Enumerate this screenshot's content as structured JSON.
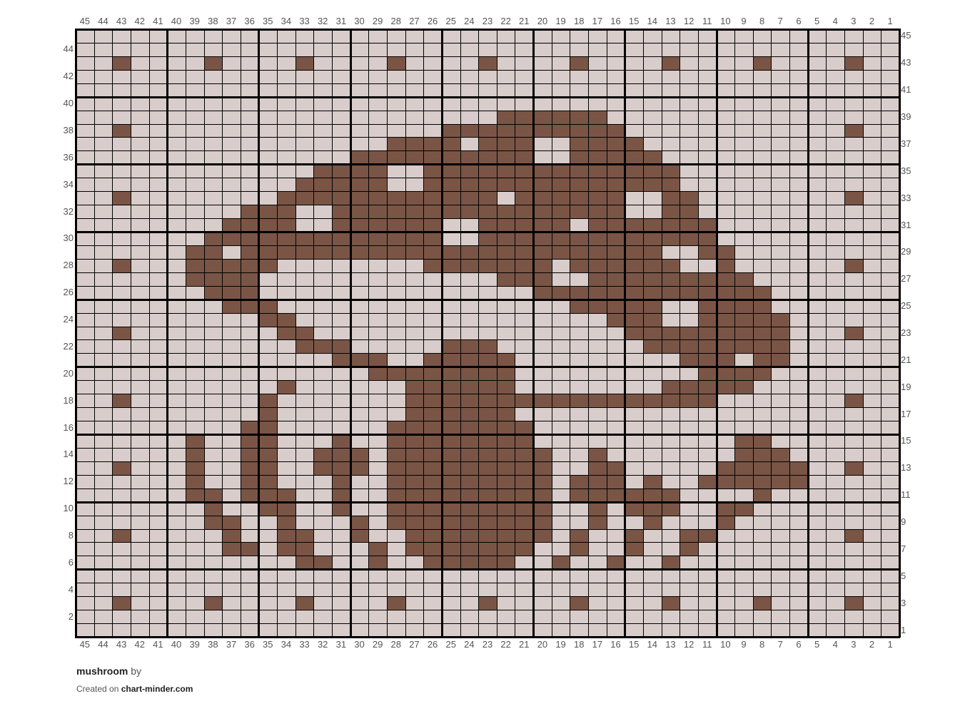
{
  "chart_data": {
    "type": "stitch-grid",
    "columns": 45,
    "rows": 45,
    "column_labels_order": "right-to-left",
    "row_labels_order": "bottom-to-top",
    "left_row_labels": "even",
    "right_row_labels": "odd",
    "colors": {
      "background": "#d8cdca",
      "stitch": "#7a5546",
      "grid": "#000000"
    },
    "dark_stitches": {
      "43": [
        43,
        38,
        33,
        28,
        23,
        18,
        13,
        8,
        3
      ],
      "39": [
        22,
        21,
        20,
        19,
        18,
        17
      ],
      "38": [
        43,
        25,
        24,
        23,
        22,
        21,
        20,
        19,
        18,
        17,
        16,
        3
      ],
      "37": [
        28,
        27,
        26,
        25,
        23,
        22,
        21,
        18,
        17,
        16,
        15
      ],
      "36": [
        30,
        29,
        28,
        27,
        26,
        25,
        24,
        23,
        22,
        21,
        18,
        17,
        16,
        15,
        14
      ],
      "35": [
        32,
        31,
        30,
        29,
        26,
        25,
        24,
        23,
        22,
        21,
        20,
        19,
        18,
        17,
        16,
        15,
        14,
        13
      ],
      "34": [
        33,
        32,
        31,
        30,
        29,
        26,
        25,
        24,
        23,
        22,
        21,
        20,
        19,
        18,
        17,
        16,
        15,
        14,
        13
      ],
      "33": [
        43,
        34,
        33,
        32,
        31,
        30,
        29,
        28,
        27,
        26,
        25,
        24,
        23,
        21,
        20,
        19,
        18,
        17,
        16,
        13,
        12,
        3
      ],
      "32": [
        36,
        35,
        34,
        31,
        30,
        29,
        28,
        27,
        26,
        25,
        24,
        23,
        22,
        21,
        20,
        19,
        18,
        17,
        16,
        13,
        12
      ],
      "31": [
        37,
        36,
        35,
        34,
        31,
        30,
        29,
        28,
        27,
        26,
        23,
        22,
        21,
        20,
        19,
        17,
        16,
        15,
        14,
        13,
        12,
        11
      ],
      "30": [
        38,
        37,
        36,
        35,
        34,
        33,
        32,
        31,
        30,
        29,
        28,
        27,
        26,
        23,
        22,
        21,
        20,
        19,
        18,
        17,
        16,
        15,
        14,
        13,
        12,
        11
      ],
      "29": [
        39,
        38,
        36,
        35,
        34,
        33,
        32,
        31,
        30,
        29,
        28,
        27,
        26,
        25,
        24,
        23,
        22,
        21,
        20,
        19,
        18,
        17,
        16,
        15,
        14,
        11,
        10
      ],
      "28": [
        43,
        39,
        38,
        37,
        36,
        35,
        26,
        25,
        24,
        23,
        22,
        21,
        20,
        18,
        17,
        16,
        15,
        14,
        13,
        10,
        3
      ],
      "27": [
        39,
        38,
        37,
        36,
        22,
        21,
        20,
        17,
        16,
        15,
        14,
        13,
        12,
        11,
        10,
        9
      ],
      "26": [
        38,
        37,
        36,
        20,
        19,
        18,
        17,
        16,
        15,
        14,
        13,
        12,
        11,
        10,
        9,
        8
      ],
      "25": [
        37,
        36,
        35,
        18,
        17,
        16,
        15,
        14,
        11,
        10,
        9,
        8
      ],
      "24": [
        35,
        34,
        16,
        15,
        14,
        11,
        10,
        9,
        8,
        7
      ],
      "23": [
        43,
        34,
        33,
        15,
        14,
        13,
        12,
        11,
        10,
        9,
        8,
        7,
        3
      ],
      "22": [
        33,
        32,
        31,
        25,
        24,
        23,
        14,
        13,
        12,
        11,
        10,
        9,
        8,
        7
      ],
      "21": [
        31,
        30,
        29,
        26,
        25,
        24,
        23,
        22,
        12,
        11,
        10,
        8,
        7
      ],
      "20": [
        29,
        28,
        27,
        26,
        25,
        24,
        23,
        22,
        11,
        10,
        9,
        8
      ],
      "19": [
        34,
        27,
        26,
        25,
        24,
        23,
        22,
        13,
        12,
        11,
        10,
        9
      ],
      "18": [
        43,
        35,
        27,
        26,
        25,
        24,
        23,
        22,
        21,
        20,
        19,
        18,
        17,
        16,
        15,
        14,
        13,
        12,
        11,
        3
      ],
      "17": [
        35,
        27,
        26,
        25,
        24,
        23,
        22
      ],
      "16": [
        36,
        35,
        28,
        27,
        26,
        25,
        24,
        23,
        22,
        21
      ],
      "15": [
        39,
        36,
        35,
        31,
        28,
        27,
        26,
        25,
        24,
        23,
        22,
        21,
        9,
        8
      ],
      "14": [
        39,
        36,
        35,
        32,
        31,
        30,
        28,
        27,
        26,
        25,
        24,
        23,
        22,
        21,
        20,
        17,
        9,
        8,
        7
      ],
      "13": [
        43,
        39,
        36,
        35,
        32,
        31,
        30,
        28,
        27,
        26,
        25,
        24,
        23,
        22,
        21,
        20,
        17,
        16,
        10,
        9,
        8,
        7,
        6,
        3
      ],
      "12": [
        39,
        36,
        35,
        31,
        28,
        27,
        26,
        25,
        24,
        23,
        22,
        21,
        20,
        18,
        17,
        16,
        14,
        11,
        10,
        9,
        8,
        7,
        6
      ],
      "11": [
        39,
        38,
        36,
        35,
        34,
        31,
        28,
        27,
        26,
        25,
        24,
        23,
        22,
        21,
        20,
        18,
        17,
        16,
        15,
        14,
        13,
        8
      ],
      "10": [
        38,
        35,
        34,
        31,
        28,
        27,
        26,
        25,
        24,
        23,
        22,
        21,
        20,
        17,
        15,
        14,
        13,
        10,
        9
      ],
      "9": [
        38,
        37,
        34,
        30,
        28,
        27,
        26,
        25,
        24,
        23,
        22,
        21,
        20,
        17,
        14,
        10
      ],
      "8": [
        43,
        37,
        34,
        33,
        30,
        27,
        26,
        25,
        24,
        23,
        22,
        21,
        20,
        18,
        15,
        12,
        11,
        3
      ],
      "7": [
        37,
        36,
        34,
        33,
        29,
        27,
        26,
        25,
        24,
        23,
        22,
        21,
        18,
        15,
        12
      ],
      "6": [
        33,
        32,
        29,
        26,
        25,
        24,
        23,
        22,
        19,
        16,
        13
      ],
      "3": [
        43,
        38,
        33,
        28,
        23,
        18,
        13,
        8,
        3
      ]
    }
  },
  "footer": {
    "title": "mushroom",
    "by": "by",
    "created_on": "Created on",
    "site": "chart-minder.com"
  }
}
